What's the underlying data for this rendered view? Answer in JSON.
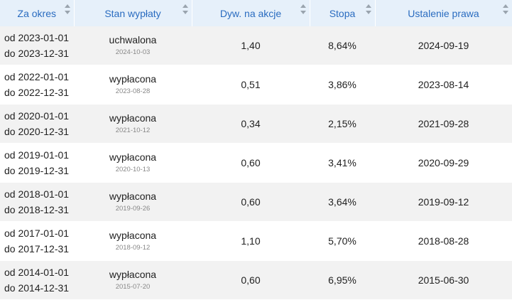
{
  "table": {
    "headers": [
      "Za okres",
      "Stan wypłaty",
      "Dyw. na akcje",
      "Stopa",
      "Ustalenie prawa"
    ],
    "rows": [
      {
        "from": "od 2023-01-01",
        "to": "do 2023-12-31",
        "status": "uchwalona",
        "status_date": "2024-10-03",
        "dividend": "1,40",
        "rate": "8,64%",
        "record_date": "2024-09-19"
      },
      {
        "from": "od 2022-01-01",
        "to": "do 2022-12-31",
        "status": "wypłacona",
        "status_date": "2023-08-28",
        "dividend": "0,51",
        "rate": "3,86%",
        "record_date": "2023-08-14"
      },
      {
        "from": "od 2020-01-01",
        "to": "do 2020-12-31",
        "status": "wypłacona",
        "status_date": "2021-10-12",
        "dividend": "0,34",
        "rate": "2,15%",
        "record_date": "2021-09-28"
      },
      {
        "from": "od 2019-01-01",
        "to": "do 2019-12-31",
        "status": "wypłacona",
        "status_date": "2020-10-13",
        "dividend": "0,60",
        "rate": "3,41%",
        "record_date": "2020-09-29"
      },
      {
        "from": "od 2018-01-01",
        "to": "do 2018-12-31",
        "status": "wypłacona",
        "status_date": "2019-09-26",
        "dividend": "0,60",
        "rate": "3,64%",
        "record_date": "2019-09-12"
      },
      {
        "from": "od 2017-01-01",
        "to": "do 2017-12-31",
        "status": "wypłacona",
        "status_date": "2018-09-12",
        "dividend": "1,10",
        "rate": "5,70%",
        "record_date": "2018-08-28"
      },
      {
        "from": "od 2014-01-01",
        "to": "do 2014-12-31",
        "status": "wypłacona",
        "status_date": "2015-07-20",
        "dividend": "0,60",
        "rate": "6,95%",
        "record_date": "2015-06-30"
      }
    ]
  }
}
